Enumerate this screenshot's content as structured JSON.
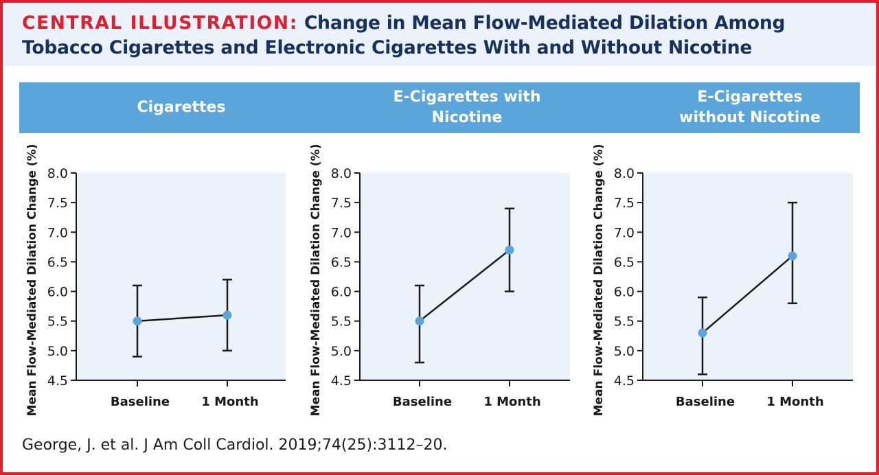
{
  "header": {
    "title_lead": "CENTRAL ILLUSTRATION:",
    "title_rest": "Change in Mean Flow-Mediated Dilation Among Tobacco Cigarettes and Electronic Cigarettes With and Without Nicotine"
  },
  "panels": [
    {
      "heading": "Cigarettes"
    },
    {
      "heading": "E-Cigarettes with Nicotine"
    },
    {
      "heading": "E-Cigarettes without Nicotine"
    }
  ],
  "citation": "George, J. et al. J Am Coll Cardiol. 2019;74(25):3112–20.",
  "colors": {
    "accent_red": "#e31d2b",
    "title_navy": "#16325c",
    "band_blue": "#5aa6db",
    "plot_bg": "#ebf2fa",
    "point_blue": "#5aa6db"
  },
  "chart_data": [
    {
      "type": "line",
      "title": "Cigarettes",
      "categories": [
        "Baseline",
        "1 Month"
      ],
      "ylabel": "Mean Flow-Mediated Dilation  Change (%)",
      "ylim": [
        4.5,
        8.0
      ],
      "yticks": [
        "8.0",
        "7.5",
        "7.0",
        "6.5",
        "6.0",
        "5.5",
        "5.0",
        "4.5"
      ],
      "values": [
        5.5,
        5.6
      ],
      "error_low": [
        4.9,
        5.0
      ],
      "error_high": [
        6.1,
        6.2
      ],
      "grid": false
    },
    {
      "type": "line",
      "title": "E-Cigarettes with Nicotine",
      "categories": [
        "Baseline",
        "1 Month"
      ],
      "ylabel": "Mean Flow-Mediated Dilation  Change (%)",
      "ylim": [
        4.5,
        8.0
      ],
      "yticks": [
        "8.0",
        "7.5",
        "7.0",
        "6.5",
        "6.0",
        "5.5",
        "5.0",
        "4.5"
      ],
      "values": [
        5.5,
        6.7
      ],
      "error_low": [
        4.8,
        6.0
      ],
      "error_high": [
        6.1,
        7.4
      ],
      "grid": false
    },
    {
      "type": "line",
      "title": "E-Cigarettes without Nicotine",
      "categories": [
        "Baseline",
        "1 Month"
      ],
      "ylabel": "Mean Flow-Mediated Dilation Change (%)",
      "ylim": [
        4.5,
        8.0
      ],
      "yticks": [
        "8.0",
        "7.5",
        "7.0",
        "6.5",
        "6.0",
        "5.5",
        "5.0",
        "4.5"
      ],
      "values": [
        5.3,
        6.6
      ],
      "error_low": [
        4.6,
        5.8
      ],
      "error_high": [
        5.9,
        7.5
      ],
      "grid": false
    }
  ]
}
